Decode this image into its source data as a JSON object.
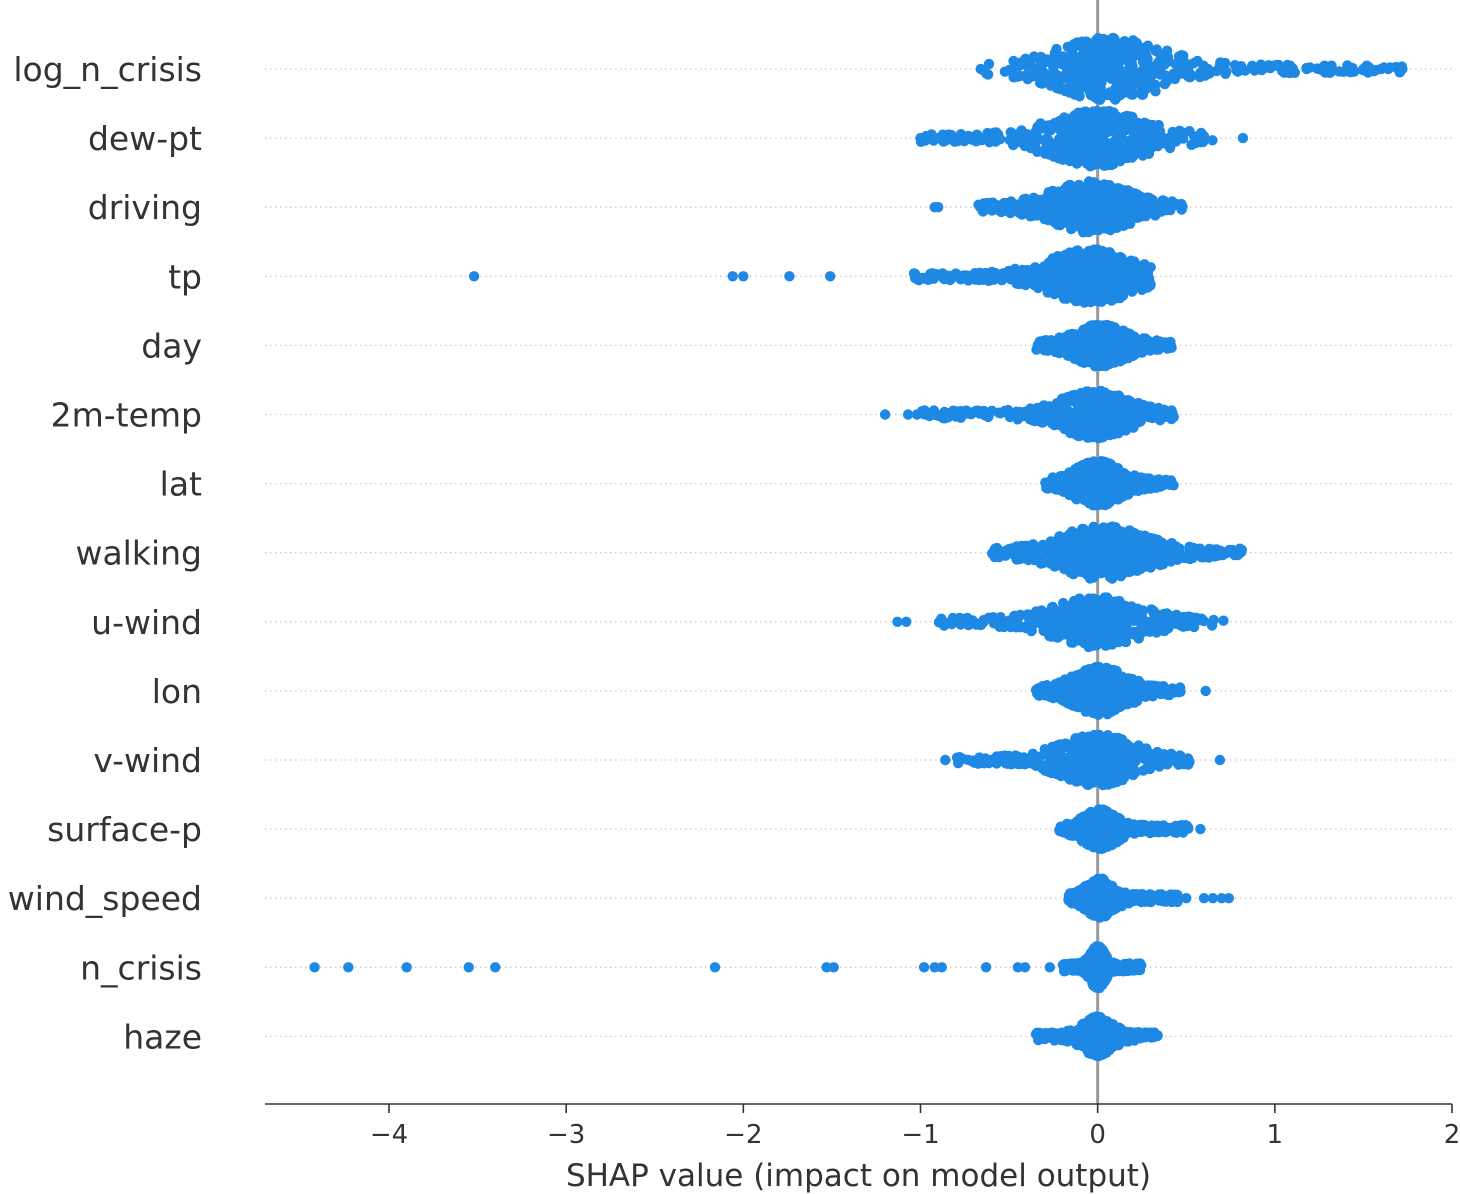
{
  "chart_data": {
    "type": "scatter",
    "subtype": "beeswarm",
    "xlabel": "SHAP value (impact on model output)",
    "xlim": [
      -4.7,
      2
    ],
    "xticks": [
      -4,
      -3,
      -2,
      -1,
      0,
      1,
      2
    ],
    "xtick_labels": [
      "−4",
      "−3",
      "−2",
      "−1",
      "0",
      "1",
      "2"
    ],
    "point_color": "#1E88E5",
    "zero_line_color": "#999999",
    "grid": false,
    "features": [
      {
        "name": "log_n_crisis",
        "min": -0.65,
        "max": 1.72,
        "spread": 0.52,
        "skew": 0.22,
        "width": 0.95,
        "outliers": [
          -0.66,
          1.05,
          1.1,
          1.18,
          1.25,
          1.3,
          1.5,
          1.6,
          1.64,
          1.72
        ]
      },
      {
        "name": "dew-pt",
        "min": -1.0,
        "max": 0.65,
        "spread": 0.45,
        "skew": 0.0,
        "width": 0.85,
        "outliers": [
          -1.0,
          -0.93,
          -0.9,
          0.82
        ]
      },
      {
        "name": "driving",
        "min": -0.68,
        "max": 0.48,
        "spread": 0.38,
        "skew": -0.12,
        "width": 0.75,
        "outliers": [
          -0.92,
          -0.9
        ]
      },
      {
        "name": "tp",
        "min": -1.05,
        "max": 0.3,
        "spread": 0.4,
        "skew": -0.12,
        "width": 0.8,
        "outliers": [
          -3.52,
          -2.06,
          -2.0,
          -1.74,
          -1.51
        ]
      },
      {
        "name": "day",
        "min": -0.35,
        "max": 0.42,
        "spread": 0.24,
        "skew": 0.05,
        "width": 0.6,
        "outliers": []
      },
      {
        "name": "2m-temp",
        "min": -1.0,
        "max": 0.43,
        "spread": 0.32,
        "skew": -0.05,
        "width": 0.7,
        "outliers": [
          -1.2,
          -1.07,
          -1.02,
          -0.97
        ]
      },
      {
        "name": "lat",
        "min": -0.3,
        "max": 0.43,
        "spread": 0.22,
        "skew": 0.0,
        "width": 0.65,
        "outliers": []
      },
      {
        "name": "walking",
        "min": -0.6,
        "max": 0.82,
        "spread": 0.42,
        "skew": 0.1,
        "width": 0.8,
        "outliers": []
      },
      {
        "name": "u-wind",
        "min": -0.9,
        "max": 0.72,
        "spread": 0.4,
        "skew": 0.0,
        "width": 0.75,
        "outliers": [
          -1.13,
          -1.08,
          -0.87,
          -0.82
        ]
      },
      {
        "name": "lon",
        "min": -0.35,
        "max": 0.48,
        "spread": 0.25,
        "skew": 0.05,
        "width": 0.7,
        "outliers": [
          0.61
        ]
      },
      {
        "name": "v-wind",
        "min": -0.8,
        "max": 0.52,
        "spread": 0.35,
        "skew": 0.0,
        "width": 0.75,
        "outliers": [
          -0.86,
          0.69
        ]
      },
      {
        "name": "surface-p",
        "min": -0.22,
        "max": 0.52,
        "spread": 0.16,
        "skew": 0.05,
        "width": 0.55,
        "outliers": [
          0.58
        ]
      },
      {
        "name": "wind_speed",
        "min": -0.17,
        "max": 0.45,
        "spread": 0.13,
        "skew": 0.05,
        "width": 0.55,
        "outliers": [
          0.5,
          0.6,
          0.65,
          0.7,
          0.74
        ]
      },
      {
        "name": "n_crisis",
        "min": -0.2,
        "max": 0.25,
        "spread": 0.07,
        "skew": 0.0,
        "width": 0.6,
        "outliers": [
          -4.42,
          -4.23,
          -3.9,
          -3.55,
          -3.4,
          -2.16,
          -1.53,
          -1.49,
          -0.98,
          -0.92,
          -0.88,
          -0.63,
          -0.45,
          -0.41,
          -0.27
        ]
      },
      {
        "name": "haze",
        "min": -0.35,
        "max": 0.34,
        "spread": 0.14,
        "skew": 0.0,
        "width": 0.55,
        "outliers": []
      }
    ]
  }
}
